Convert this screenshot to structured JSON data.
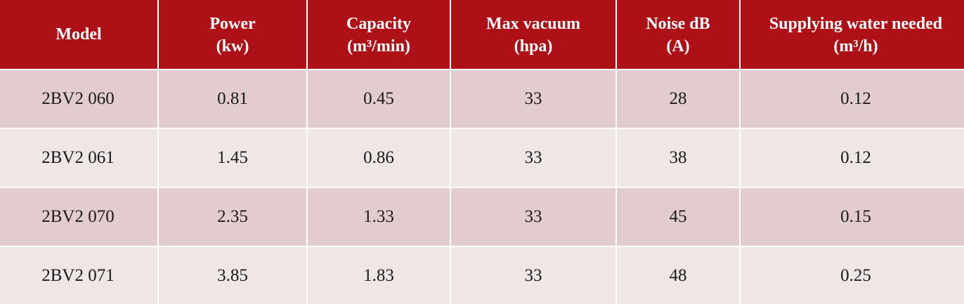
{
  "colors": {
    "header_bg": "#ad1117",
    "header_text": "#ffffff",
    "row_odd_bg": "#e3cccd",
    "row_even_bg": "#efe6e6",
    "body_text": "#1a1a1a"
  },
  "table": {
    "headers": [
      {
        "line1": "Model",
        "line2": ""
      },
      {
        "line1": "Power",
        "line2": "(kw)"
      },
      {
        "line1": "Capacity",
        "line2": "(m³/min)"
      },
      {
        "line1": "Max vacuum",
        "line2": "(hpa)"
      },
      {
        "line1": "Noise dB",
        "line2": "(A)"
      },
      {
        "line1": "Supplying water needed",
        "line2": "(m³/h)"
      }
    ],
    "rows": [
      [
        "2BV2 060",
        "0.81",
        "0.45",
        "33",
        "28",
        "0.12"
      ],
      [
        "2BV2 061",
        "1.45",
        "0.86",
        "33",
        "38",
        "0.12"
      ],
      [
        "2BV2 070",
        "2.35",
        "1.33",
        "33",
        "45",
        "0.15"
      ],
      [
        "2BV2 071",
        "3.85",
        "1.83",
        "33",
        "48",
        "0.25"
      ]
    ]
  }
}
